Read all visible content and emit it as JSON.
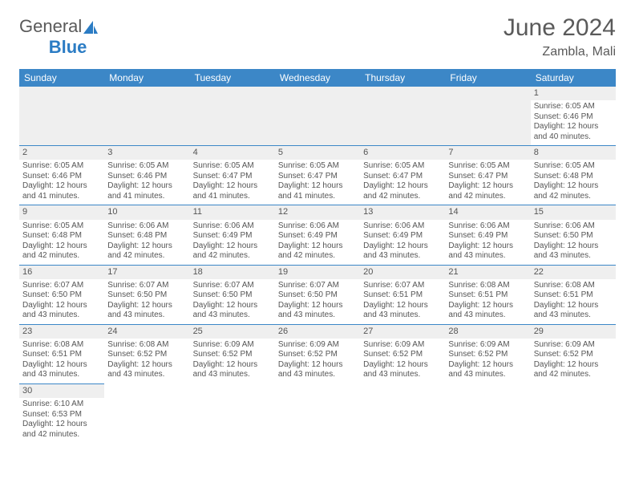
{
  "brand": {
    "general": "General",
    "blue": "Blue"
  },
  "title": "June 2024",
  "location": "Zambla, Mali",
  "headers": [
    "Sunday",
    "Monday",
    "Tuesday",
    "Wednesday",
    "Thursday",
    "Friday",
    "Saturday"
  ],
  "colors": {
    "headerBg": "#3c87c7",
    "headerText": "#ffffff",
    "dayNumBg": "#efefef",
    "borderTop": "#3c87c7",
    "textColor": "#555555"
  },
  "startOffset": 6,
  "days": [
    {
      "n": 1,
      "sr": "6:05 AM",
      "ss": "6:46 PM",
      "dl": "12 hours and 40 minutes."
    },
    {
      "n": 2,
      "sr": "6:05 AM",
      "ss": "6:46 PM",
      "dl": "12 hours and 41 minutes."
    },
    {
      "n": 3,
      "sr": "6:05 AM",
      "ss": "6:46 PM",
      "dl": "12 hours and 41 minutes."
    },
    {
      "n": 4,
      "sr": "6:05 AM",
      "ss": "6:47 PM",
      "dl": "12 hours and 41 minutes."
    },
    {
      "n": 5,
      "sr": "6:05 AM",
      "ss": "6:47 PM",
      "dl": "12 hours and 41 minutes."
    },
    {
      "n": 6,
      "sr": "6:05 AM",
      "ss": "6:47 PM",
      "dl": "12 hours and 42 minutes."
    },
    {
      "n": 7,
      "sr": "6:05 AM",
      "ss": "6:47 PM",
      "dl": "12 hours and 42 minutes."
    },
    {
      "n": 8,
      "sr": "6:05 AM",
      "ss": "6:48 PM",
      "dl": "12 hours and 42 minutes."
    },
    {
      "n": 9,
      "sr": "6:05 AM",
      "ss": "6:48 PM",
      "dl": "12 hours and 42 minutes."
    },
    {
      "n": 10,
      "sr": "6:06 AM",
      "ss": "6:48 PM",
      "dl": "12 hours and 42 minutes."
    },
    {
      "n": 11,
      "sr": "6:06 AM",
      "ss": "6:49 PM",
      "dl": "12 hours and 42 minutes."
    },
    {
      "n": 12,
      "sr": "6:06 AM",
      "ss": "6:49 PM",
      "dl": "12 hours and 42 minutes."
    },
    {
      "n": 13,
      "sr": "6:06 AM",
      "ss": "6:49 PM",
      "dl": "12 hours and 43 minutes."
    },
    {
      "n": 14,
      "sr": "6:06 AM",
      "ss": "6:49 PM",
      "dl": "12 hours and 43 minutes."
    },
    {
      "n": 15,
      "sr": "6:06 AM",
      "ss": "6:50 PM",
      "dl": "12 hours and 43 minutes."
    },
    {
      "n": 16,
      "sr": "6:07 AM",
      "ss": "6:50 PM",
      "dl": "12 hours and 43 minutes."
    },
    {
      "n": 17,
      "sr": "6:07 AM",
      "ss": "6:50 PM",
      "dl": "12 hours and 43 minutes."
    },
    {
      "n": 18,
      "sr": "6:07 AM",
      "ss": "6:50 PM",
      "dl": "12 hours and 43 minutes."
    },
    {
      "n": 19,
      "sr": "6:07 AM",
      "ss": "6:50 PM",
      "dl": "12 hours and 43 minutes."
    },
    {
      "n": 20,
      "sr": "6:07 AM",
      "ss": "6:51 PM",
      "dl": "12 hours and 43 minutes."
    },
    {
      "n": 21,
      "sr": "6:08 AM",
      "ss": "6:51 PM",
      "dl": "12 hours and 43 minutes."
    },
    {
      "n": 22,
      "sr": "6:08 AM",
      "ss": "6:51 PM",
      "dl": "12 hours and 43 minutes."
    },
    {
      "n": 23,
      "sr": "6:08 AM",
      "ss": "6:51 PM",
      "dl": "12 hours and 43 minutes."
    },
    {
      "n": 24,
      "sr": "6:08 AM",
      "ss": "6:52 PM",
      "dl": "12 hours and 43 minutes."
    },
    {
      "n": 25,
      "sr": "6:09 AM",
      "ss": "6:52 PM",
      "dl": "12 hours and 43 minutes."
    },
    {
      "n": 26,
      "sr": "6:09 AM",
      "ss": "6:52 PM",
      "dl": "12 hours and 43 minutes."
    },
    {
      "n": 27,
      "sr": "6:09 AM",
      "ss": "6:52 PM",
      "dl": "12 hours and 43 minutes."
    },
    {
      "n": 28,
      "sr": "6:09 AM",
      "ss": "6:52 PM",
      "dl": "12 hours and 43 minutes."
    },
    {
      "n": 29,
      "sr": "6:09 AM",
      "ss": "6:52 PM",
      "dl": "12 hours and 42 minutes."
    },
    {
      "n": 30,
      "sr": "6:10 AM",
      "ss": "6:53 PM",
      "dl": "12 hours and 42 minutes."
    }
  ],
  "labels": {
    "sunrise": "Sunrise:",
    "sunset": "Sunset:",
    "daylight": "Daylight:"
  }
}
